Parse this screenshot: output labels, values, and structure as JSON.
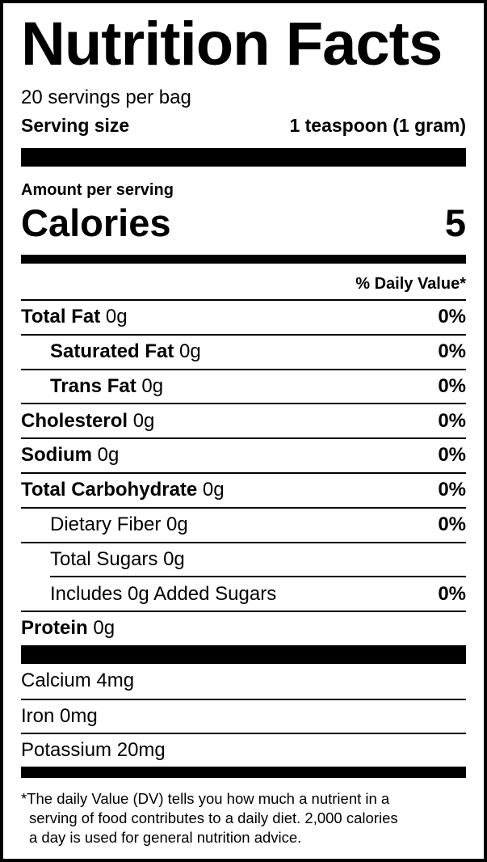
{
  "title": "Nutrition Facts",
  "servings_per_container": "20 servings per bag",
  "serving_size": {
    "label": "Serving size",
    "value": "1 teaspoon (1 gram)"
  },
  "amount_per_serving": "Amount per serving",
  "calories": {
    "label": "Calories",
    "value": "5"
  },
  "daily_value_header": "% Daily Value*",
  "nutrients": [
    {
      "name": "Total Fat",
      "amount": "0g",
      "dv": "0%"
    },
    {
      "name": "Saturated Fat",
      "amount": "0g",
      "dv": "0%"
    },
    {
      "name": "Trans Fat",
      "amount": "0g",
      "dv": "0%"
    },
    {
      "name": "Cholesterol",
      "amount": "0g",
      "dv": "0%"
    },
    {
      "name": "Sodium",
      "amount": "0g",
      "dv": "0%"
    },
    {
      "name": "Total Carbohydrate",
      "amount": "0g",
      "dv": "0%"
    },
    {
      "name": "Dietary Fiber",
      "amount": "0g",
      "dv": "0%"
    },
    {
      "name": "Total Sugars",
      "amount": "0g",
      "dv": ""
    },
    {
      "name": "Includes 0g Added Sugars",
      "amount": "",
      "dv": "0%"
    },
    {
      "name": "Protein",
      "amount": "0g",
      "dv": ""
    }
  ],
  "minerals": [
    {
      "name": "Calcium",
      "amount": "4mg"
    },
    {
      "name": "Iron",
      "amount": "0mg"
    },
    {
      "name": "Potassium",
      "amount": "20mg"
    }
  ],
  "footnote": [
    "*The daily Value (DV) tells you how much a nutrient in a",
    "serving of food contributes to a daily diet. 2,000 calories",
    "a day is used for general nutrition advice."
  ]
}
